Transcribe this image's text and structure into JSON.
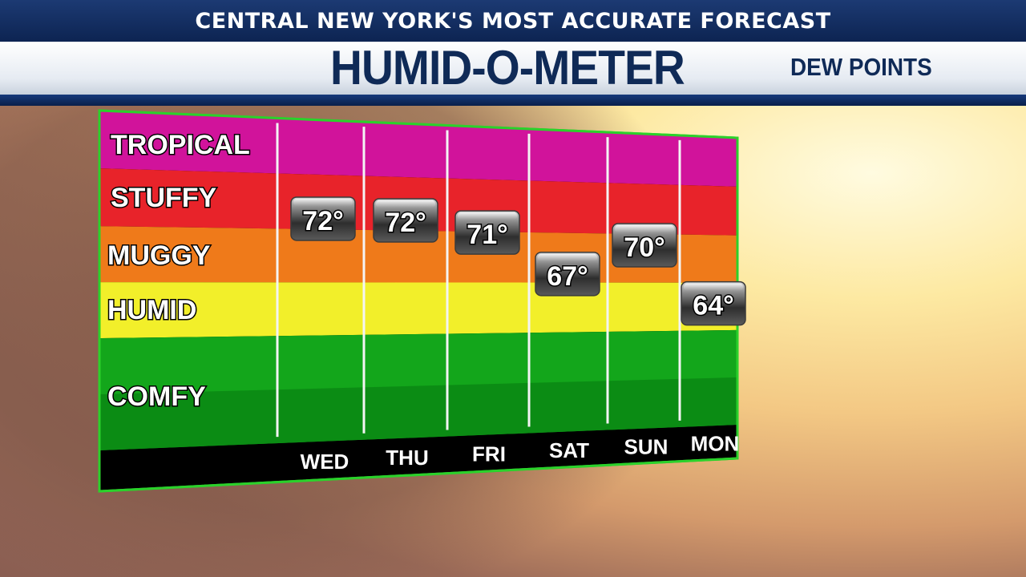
{
  "header": {
    "tagline": "CENTRAL NEW YORK'S MOST ACCURATE FORECAST",
    "title": "HUMID-O-METER",
    "subtitle": "DEW POINTS"
  },
  "chart_data": {
    "type": "bar",
    "title": "HUMID-O-METER",
    "ylabel": "DEW POINTS",
    "categories": [
      "WED",
      "THU",
      "FRI",
      "SAT",
      "SUN",
      "MON"
    ],
    "values": [
      72,
      72,
      71,
      67,
      70,
      64
    ],
    "value_suffix": "°",
    "bands": [
      {
        "label": "TROPICAL",
        "min": 75,
        "max": 80,
        "color": "#d1139b"
      },
      {
        "label": "STUFFY",
        "min": 70,
        "max": 75,
        "color": "#e8232a"
      },
      {
        "label": "MUGGY",
        "min": 65,
        "max": 70,
        "color": "#ef7a1a"
      },
      {
        "label": "HUMID",
        "min": 60,
        "max": 65,
        "color": "#f2ef2a"
      },
      {
        "label": "COMFY",
        "min": 50,
        "max": 60,
        "color": "#13a61b"
      }
    ],
    "ylim": [
      50,
      80
    ],
    "grid": true,
    "legend": "none"
  }
}
